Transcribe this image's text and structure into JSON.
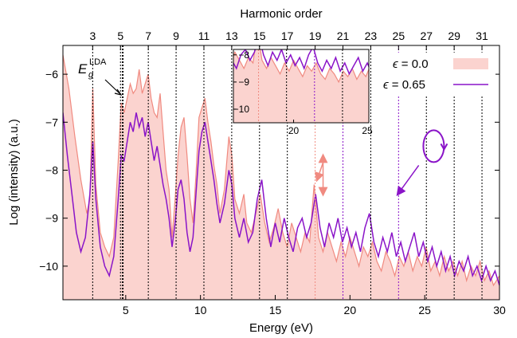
{
  "chart_data": {
    "type": "line",
    "xlabel": "Energy (eV)",
    "ylabel": "Log (intensity) (a.u.)",
    "top_xlabel": "Harmonic order",
    "xlim": [
      0.8,
      30
    ],
    "ylim": [
      -10.7,
      -5.4
    ],
    "x_ticks": [
      5,
      10,
      15,
      20,
      25,
      30
    ],
    "y_ticks": [
      -10,
      -9,
      -8,
      -7,
      -6
    ],
    "harmonic_orders": [
      3,
      5,
      7,
      9,
      11,
      13,
      15,
      17,
      19,
      21,
      23,
      25,
      27,
      29,
      31
    ],
    "fundamental_energy_eV": 0.93,
    "band_gap_label": "E_g^LDA",
    "band_gap_label_main": "E",
    "band_gap_label_sub": "g",
    "band_gap_label_sup": "LDA",
    "band_gap_energy_eV": 4.8,
    "series": [
      {
        "name": "ϵ = 0.0",
        "label_math": "ϵ",
        "label_value": " = 0.0",
        "color": "#f08a80",
        "fill": "#fbd3cf",
        "points": [
          [
            0.8,
            -5.6
          ],
          [
            1.2,
            -6.3
          ],
          [
            1.6,
            -7.3
          ],
          [
            2.0,
            -8.2
          ],
          [
            2.4,
            -8.9
          ],
          [
            2.6,
            -8.6
          ],
          [
            2.8,
            -6.3
          ],
          [
            3.0,
            -8.3
          ],
          [
            3.3,
            -9.3
          ],
          [
            3.6,
            -9.6
          ],
          [
            3.9,
            -9.8
          ],
          [
            4.2,
            -9.4
          ],
          [
            4.5,
            -7.8
          ],
          [
            4.7,
            -6.6
          ],
          [
            4.9,
            -6.8
          ],
          [
            5.1,
            -6.5
          ],
          [
            5.3,
            -6.2
          ],
          [
            5.5,
            -6.4
          ],
          [
            5.7,
            -6.3
          ],
          [
            5.9,
            -5.9
          ],
          [
            6.1,
            -6.4
          ],
          [
            6.3,
            -6.2
          ],
          [
            6.5,
            -6.0
          ],
          [
            6.7,
            -6.5
          ],
          [
            6.9,
            -6.8
          ],
          [
            7.1,
            -6.9
          ],
          [
            7.3,
            -6.4
          ],
          [
            7.5,
            -7.2
          ],
          [
            7.7,
            -8.0
          ],
          [
            7.9,
            -8.4
          ],
          [
            8.1,
            -9.4
          ],
          [
            8.3,
            -8.6
          ],
          [
            8.5,
            -7.7
          ],
          [
            8.7,
            -7.1
          ],
          [
            8.9,
            -6.9
          ],
          [
            9.1,
            -7.7
          ],
          [
            9.3,
            -8.6
          ],
          [
            9.5,
            -9.1
          ],
          [
            9.7,
            -8.1
          ],
          [
            9.9,
            -6.9
          ],
          [
            10.1,
            -6.7
          ],
          [
            10.3,
            -6.5
          ],
          [
            10.5,
            -7.0
          ],
          [
            10.7,
            -7.4
          ],
          [
            10.9,
            -7.9
          ],
          [
            11.1,
            -8.3
          ],
          [
            11.3,
            -8.9
          ],
          [
            11.6,
            -8.4
          ],
          [
            11.9,
            -7.3
          ],
          [
            12.1,
            -7.7
          ],
          [
            12.3,
            -8.6
          ],
          [
            12.6,
            -8.9
          ],
          [
            12.9,
            -8.5
          ],
          [
            13.1,
            -9.1
          ],
          [
            13.4,
            -9.3
          ],
          [
            13.7,
            -8.9
          ],
          [
            14.0,
            -8.5
          ],
          [
            14.3,
            -9.1
          ],
          [
            14.6,
            -9.5
          ],
          [
            14.9,
            -9.2
          ],
          [
            15.2,
            -8.8
          ],
          [
            15.5,
            -9.3
          ],
          [
            15.8,
            -9.6
          ],
          [
            16.1,
            -9.1
          ],
          [
            16.4,
            -9.4
          ],
          [
            16.7,
            -9.7
          ],
          [
            17.0,
            -9.3
          ],
          [
            17.3,
            -9.5
          ],
          [
            17.6,
            -8.3
          ],
          [
            17.9,
            -9.4
          ],
          [
            18.2,
            -9.7
          ],
          [
            18.5,
            -9.3
          ],
          [
            18.8,
            -9.6
          ],
          [
            19.1,
            -9.9
          ],
          [
            19.4,
            -9.5
          ],
          [
            19.7,
            -9.8
          ],
          [
            20.0,
            -9.4
          ],
          [
            20.3,
            -9.7
          ],
          [
            20.6,
            -10.0
          ],
          [
            20.9,
            -9.6
          ],
          [
            21.2,
            -9.8
          ],
          [
            21.5,
            -9.5
          ],
          [
            21.8,
            -9.9
          ],
          [
            22.1,
            -10.1
          ],
          [
            22.4,
            -9.7
          ],
          [
            22.7,
            -9.9
          ],
          [
            23.0,
            -10.2
          ],
          [
            23.3,
            -9.8
          ],
          [
            23.6,
            -10.0
          ],
          [
            23.9,
            -9.7
          ],
          [
            24.2,
            -10.1
          ],
          [
            24.5,
            -9.8
          ],
          [
            24.8,
            -10.0
          ],
          [
            25.1,
            -9.6
          ],
          [
            25.4,
            -10.1
          ],
          [
            25.7,
            -9.9
          ],
          [
            26.0,
            -10.2
          ],
          [
            26.3,
            -9.8
          ],
          [
            26.6,
            -10.1
          ],
          [
            26.9,
            -9.9
          ],
          [
            27.2,
            -10.2
          ],
          [
            27.5,
            -9.9
          ],
          [
            27.8,
            -10.3
          ],
          [
            28.1,
            -10.0
          ],
          [
            28.4,
            -10.2
          ],
          [
            28.7,
            -9.9
          ],
          [
            29.0,
            -10.3
          ],
          [
            29.3,
            -10.1
          ],
          [
            29.6,
            -10.4
          ],
          [
            30.0,
            -10.2
          ]
        ]
      },
      {
        "name": "ϵ = 0.65",
        "label_math": "ϵ",
        "label_value": " = 0.65",
        "color": "#8a14c8",
        "points": [
          [
            0.8,
            -6.8
          ],
          [
            1.1,
            -7.7
          ],
          [
            1.4,
            -8.5
          ],
          [
            1.7,
            -9.3
          ],
          [
            2.0,
            -9.7
          ],
          [
            2.3,
            -9.4
          ],
          [
            2.6,
            -8.5
          ],
          [
            2.8,
            -7.4
          ],
          [
            3.0,
            -8.6
          ],
          [
            3.3,
            -9.6
          ],
          [
            3.6,
            -10.0
          ],
          [
            3.9,
            -10.2
          ],
          [
            4.2,
            -9.8
          ],
          [
            4.5,
            -8.6
          ],
          [
            4.7,
            -7.7
          ],
          [
            4.9,
            -7.8
          ],
          [
            5.1,
            -7.4
          ],
          [
            5.3,
            -7.0
          ],
          [
            5.5,
            -7.2
          ],
          [
            5.7,
            -6.8
          ],
          [
            5.9,
            -7.1
          ],
          [
            6.1,
            -6.9
          ],
          [
            6.3,
            -7.3
          ],
          [
            6.5,
            -7.0
          ],
          [
            6.7,
            -7.4
          ],
          [
            6.9,
            -7.8
          ],
          [
            7.1,
            -7.5
          ],
          [
            7.3,
            -7.9
          ],
          [
            7.5,
            -8.3
          ],
          [
            7.7,
            -8.6
          ],
          [
            7.9,
            -9.0
          ],
          [
            8.1,
            -9.6
          ],
          [
            8.3,
            -9.1
          ],
          [
            8.5,
            -8.4
          ],
          [
            8.7,
            -8.2
          ],
          [
            8.9,
            -8.6
          ],
          [
            9.1,
            -9.3
          ],
          [
            9.3,
            -9.7
          ],
          [
            9.5,
            -9.4
          ],
          [
            9.7,
            -8.5
          ],
          [
            9.9,
            -7.6
          ],
          [
            10.1,
            -7.2
          ],
          [
            10.3,
            -7.0
          ],
          [
            10.5,
            -7.4
          ],
          [
            10.7,
            -7.8
          ],
          [
            10.9,
            -8.2
          ],
          [
            11.1,
            -8.7
          ],
          [
            11.3,
            -9.1
          ],
          [
            11.6,
            -8.7
          ],
          [
            11.9,
            -8.0
          ],
          [
            12.1,
            -8.3
          ],
          [
            12.3,
            -9.0
          ],
          [
            12.6,
            -9.4
          ],
          [
            12.9,
            -9.0
          ],
          [
            13.2,
            -9.5
          ],
          [
            13.5,
            -9.3
          ],
          [
            13.8,
            -8.6
          ],
          [
            14.1,
            -8.2
          ],
          [
            14.4,
            -9.0
          ],
          [
            14.7,
            -9.6
          ],
          [
            15.0,
            -9.1
          ],
          [
            15.3,
            -9.5
          ],
          [
            15.6,
            -9.0
          ],
          [
            15.9,
            -9.4
          ],
          [
            16.2,
            -9.7
          ],
          [
            16.5,
            -9.2
          ],
          [
            16.8,
            -9.0
          ],
          [
            17.1,
            -9.4
          ],
          [
            17.4,
            -9.1
          ],
          [
            17.7,
            -8.5
          ],
          [
            18.0,
            -9.2
          ],
          [
            18.3,
            -9.6
          ],
          [
            18.6,
            -9.1
          ],
          [
            18.9,
            -9.4
          ],
          [
            19.2,
            -9.0
          ],
          [
            19.5,
            -9.5
          ],
          [
            19.8,
            -9.2
          ],
          [
            20.1,
            -9.6
          ],
          [
            20.4,
            -9.3
          ],
          [
            20.7,
            -9.7
          ],
          [
            21.0,
            -9.2
          ],
          [
            21.3,
            -8.9
          ],
          [
            21.6,
            -9.5
          ],
          [
            21.9,
            -9.8
          ],
          [
            22.2,
            -9.4
          ],
          [
            22.5,
            -9.7
          ],
          [
            22.8,
            -9.3
          ],
          [
            23.1,
            -9.8
          ],
          [
            23.4,
            -9.5
          ],
          [
            23.7,
            -9.9
          ],
          [
            24.0,
            -9.6
          ],
          [
            24.3,
            -9.3
          ],
          [
            24.6,
            -9.8
          ],
          [
            24.9,
            -9.5
          ],
          [
            25.2,
            -9.9
          ],
          [
            25.5,
            -9.6
          ],
          [
            25.8,
            -10.0
          ],
          [
            26.1,
            -9.7
          ],
          [
            26.4,
            -10.1
          ],
          [
            26.7,
            -9.8
          ],
          [
            27.0,
            -10.2
          ],
          [
            27.3,
            -9.9
          ],
          [
            27.6,
            -10.1
          ],
          [
            27.9,
            -9.8
          ],
          [
            28.2,
            -10.2
          ],
          [
            28.5,
            -10.0
          ],
          [
            28.8,
            -10.3
          ],
          [
            29.1,
            -10.0
          ],
          [
            29.4,
            -10.3
          ],
          [
            29.7,
            -10.1
          ],
          [
            30.0,
            -10.4
          ]
        ]
      }
    ],
    "inset": {
      "xlim": [
        16,
        25
      ],
      "ylim": [
        -10.5,
        -7.8
      ],
      "x_ticks": [
        20,
        25
      ],
      "y_ticks": [
        -10,
        -9,
        -8
      ],
      "series_ref": [
        0,
        1
      ]
    },
    "legend_placement": "top-right",
    "grid": false,
    "annotations": [
      {
        "type": "double-arrow-vertical",
        "color": "#f08a80",
        "x_eV": 18.2,
        "y1": -7.7,
        "y2": -8.5
      },
      {
        "type": "arrow",
        "color": "#f08a80",
        "from": [
          18.3,
          -7.75
        ],
        "to": [
          17.8,
          -8.2
        ]
      },
      {
        "type": "arrow",
        "color": "#8a14c8",
        "from": [
          24.6,
          -7.9
        ],
        "to": [
          23.2,
          -8.5
        ]
      },
      {
        "type": "ellipse-polarization",
        "color": "#8a14c8",
        "cx_eV": 25.6,
        "cy": -7.5
      }
    ]
  }
}
